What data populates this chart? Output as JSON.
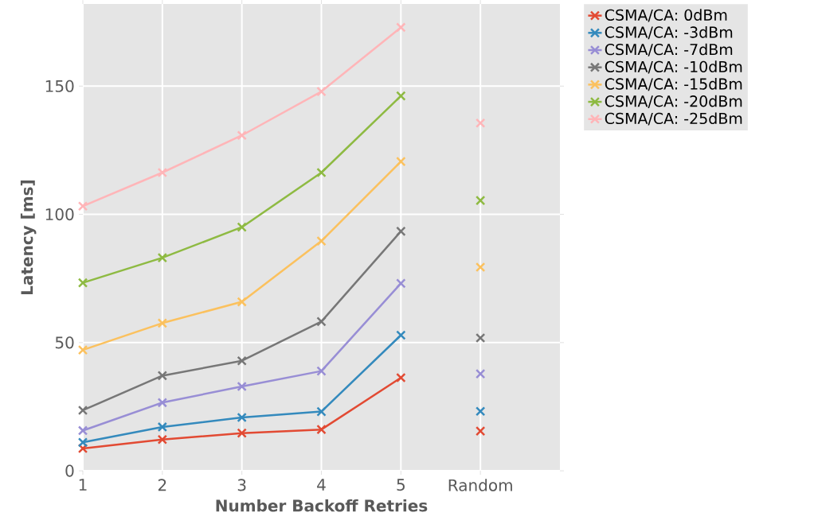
{
  "chart_data": {
    "type": "line",
    "xlabel": "Number Backoff Retries",
    "ylabel": "Latency [ms]",
    "xlim": [
      1,
      7
    ],
    "ylim": [
      0,
      182
    ],
    "xticks": [
      1,
      2,
      3,
      4,
      5,
      {
        "value": 6,
        "label": "Random"
      }
    ],
    "yticks": [
      0,
      50,
      100,
      150
    ],
    "grid": true,
    "legend": "top right",
    "marker": "cross",
    "line_style": "solid",
    "series": [
      {
        "name": "CSMA/CA: 0dBm",
        "color": "#e24a33",
        "x": [
          1,
          2,
          3,
          4,
          5
        ],
        "values": [
          8.7,
          12.2,
          14.7,
          16.1,
          36.3
        ]
      },
      {
        "name": "CSMA/CA: -3dBm",
        "color": "#348abd",
        "x": [
          1,
          2,
          3,
          4,
          5
        ],
        "values": [
          11.1,
          17.1,
          20.8,
          23.1,
          52.9
        ]
      },
      {
        "name": "CSMA/CA: -7dBm",
        "color": "#988ed5",
        "x": [
          1,
          2,
          3,
          4,
          5
        ],
        "values": [
          15.7,
          26.6,
          32.9,
          38.9,
          73.1
        ]
      },
      {
        "name": "CSMA/CA: -10dBm",
        "color": "#777777",
        "x": [
          1,
          2,
          3,
          4,
          5
        ],
        "values": [
          23.6,
          37.1,
          42.9,
          58.2,
          93.4
        ]
      },
      {
        "name": "CSMA/CA: -15dBm",
        "color": "#fbc15e",
        "x": [
          1,
          2,
          3,
          4,
          5
        ],
        "values": [
          47.1,
          57.6,
          65.9,
          89.6,
          120.6
        ]
      },
      {
        "name": "CSMA/CA: -20dBm",
        "color": "#8eba42",
        "x": [
          1,
          2,
          3,
          4,
          5
        ],
        "values": [
          73.3,
          83.1,
          95.0,
          116.3,
          146.2
        ]
      },
      {
        "name": "CSMA/CA: -25dBm",
        "color": "#ffb5b8",
        "x": [
          1,
          2,
          3,
          4,
          5
        ],
        "values": [
          103.2,
          116.3,
          130.8,
          147.9,
          172.9
        ]
      },
      {
        "type": "scatter",
        "color": "#e24a33",
        "x": [
          6
        ],
        "values": [
          15.5
        ]
      },
      {
        "type": "scatter",
        "color": "#348abd",
        "x": [
          6
        ],
        "values": [
          23.2
        ]
      },
      {
        "type": "scatter",
        "color": "#988ed5",
        "x": [
          6
        ],
        "values": [
          37.8
        ]
      },
      {
        "type": "scatter",
        "color": "#777777",
        "x": [
          6
        ],
        "values": [
          51.8
        ]
      },
      {
        "type": "scatter",
        "color": "#fbc15e",
        "x": [
          6
        ],
        "values": [
          79.4
        ]
      },
      {
        "type": "scatter",
        "color": "#8eba42",
        "x": [
          6
        ],
        "values": [
          105.4
        ]
      },
      {
        "type": "scatter",
        "color": "#ffb5b8",
        "x": [
          6
        ],
        "values": [
          135.6
        ]
      }
    ]
  }
}
